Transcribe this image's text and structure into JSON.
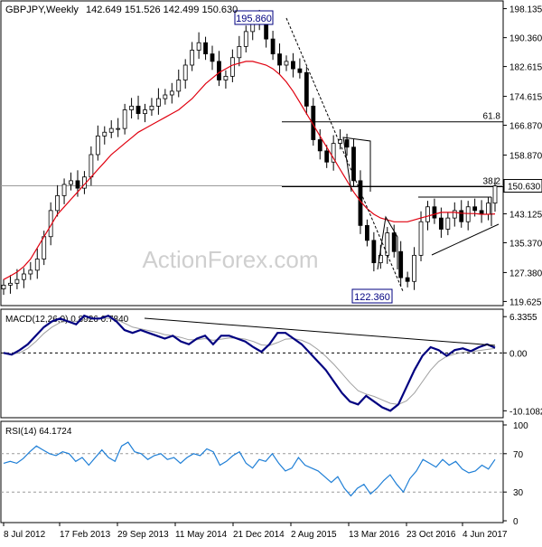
{
  "chart_data": [
    {
      "type": "candlestick",
      "title": "GBPJPY,Weekly",
      "ohlc_text": "142.649 151.526 142.499 150.630",
      "ohlc": {
        "open": 142.649,
        "high": 151.526,
        "low": 142.499,
        "close": 150.63
      },
      "watermark": "ActionForex.com",
      "y_ticks": [
        "198.135",
        "190.360",
        "182.615",
        "174.615",
        "166.870",
        "158.870",
        "150.630",
        "143.125",
        "135.370",
        "127.380",
        "119.625"
      ],
      "y_tick_values": [
        198.135,
        190.36,
        182.615,
        174.615,
        166.87,
        158.87,
        150.63,
        143.125,
        135.37,
        127.38,
        119.625
      ],
      "current_price": "150.630",
      "ylim": [
        119.0,
        199.0
      ],
      "labels": {
        "high": "195.860",
        "low": "122.360",
        "fib_618": "61.8",
        "fib_382": "38.2"
      },
      "fib_618_value": 167.8,
      "fib_382_value": 150.4,
      "x_tick_labels": [
        "8 Jul 2012",
        "17 Feb 2013",
        "29 Sep 2013",
        "11 May 2014",
        "21 Dec 2014",
        "2 Aug 2015",
        "13 Mar 2016",
        "23 Oct 2016",
        "4 Jun 2017"
      ],
      "series": [
        {
          "name": "Close (approx.)",
          "values": [
            124.0,
            124.5,
            125.5,
            127.0,
            128.0,
            131.0,
            137.0,
            144.0,
            148.0,
            151.0,
            152.0,
            150.0,
            153.0,
            159.0,
            164.0,
            165.0,
            166.0,
            166.0,
            171.0,
            172.0,
            170.0,
            171.0,
            172.0,
            174.0,
            175.0,
            176.0,
            179.0,
            183.0,
            187.0,
            189.0,
            186.0,
            184.0,
            179.0,
            180.0,
            185.0,
            188.0,
            192.0,
            195.0,
            194.0,
            190.0,
            186.0,
            183.0,
            184.0,
            182.0,
            181.0,
            172.0,
            163.0,
            160.0,
            157.0,
            162.0,
            163.0,
            161.0,
            152.0,
            140.0,
            136.0,
            130.0,
            132.0,
            138.0,
            133.0,
            126.0,
            125.0,
            132.0,
            141.0,
            145.0,
            142.0,
            139.0,
            142.0,
            144.0,
            141.0,
            145.0,
            144.0,
            143.0,
            146.0,
            150.6
          ]
        },
        {
          "name": "Moving average (approx.)",
          "values": [
            125.5,
            126.5,
            127.5,
            129.0,
            131.0,
            134.0,
            137.0,
            140.0,
            143.0,
            145.0,
            147.0,
            149.0,
            151.0,
            153.0,
            155.0,
            157.0,
            159.0,
            160.5,
            162.0,
            163.5,
            165.0,
            166.0,
            167.0,
            168.0,
            169.0,
            170.0,
            171.0,
            172.5,
            174.0,
            176.0,
            178.0,
            179.5,
            181.0,
            182.0,
            183.0,
            183.5,
            184.0,
            184.0,
            183.5,
            183.0,
            182.0,
            180.5,
            178.5,
            176.0,
            173.0,
            170.0,
            167.0,
            164.0,
            161.0,
            158.0,
            155.0,
            152.0,
            149.0,
            146.5,
            144.5,
            143.0,
            142.0,
            141.5,
            141.0,
            141.0,
            141.0,
            141.5,
            142.0,
            142.5,
            143.0,
            143.5,
            143.5,
            143.5,
            143.3,
            143.2,
            143.2,
            143.0,
            143.0,
            143.1
          ]
        }
      ]
    },
    {
      "type": "line",
      "title": "MACD(12,26,9) 0.8926 0.7840",
      "y_ticks": [
        "6.3355",
        "0.00",
        "-10.1082"
      ],
      "y_tick_values": [
        6.3355,
        0.0,
        -10.1082
      ],
      "ylim": [
        -11.0,
        7.0
      ],
      "series": [
        {
          "name": "MACD",
          "values": [
            0.0,
            -0.3,
            0.5,
            1.5,
            3.0,
            4.5,
            5.5,
            6.0,
            5.5,
            5.0,
            6.5,
            6.0,
            6.0,
            6.5,
            5.5,
            4.0,
            3.5,
            4.0,
            3.5,
            3.0,
            2.5,
            3.0,
            2.0,
            1.5,
            2.5,
            3.0,
            1.5,
            3.0,
            3.0,
            2.5,
            2.0,
            1.0,
            0.2,
            1.5,
            3.5,
            3.5,
            2.5,
            1.5,
            0.0,
            -1.5,
            -3.0,
            -5.0,
            -7.0,
            -8.5,
            -9.0,
            -7.5,
            -8.5,
            -9.5,
            -10.1,
            -9.0,
            -6.0,
            -3.0,
            -0.5,
            1.0,
            0.5,
            -0.5,
            0.5,
            0.8,
            0.3,
            1.0,
            1.5,
            0.9
          ]
        },
        {
          "name": "Signal",
          "values": [
            0.0,
            -0.2,
            0.0,
            0.8,
            2.0,
            3.4,
            4.5,
            5.3,
            5.6,
            5.5,
            5.8,
            6.0,
            6.0,
            6.0,
            5.8,
            5.2,
            4.5,
            4.2,
            3.9,
            3.6,
            3.2,
            3.0,
            2.7,
            2.3,
            2.3,
            2.5,
            2.2,
            2.4,
            2.6,
            2.6,
            2.4,
            2.0,
            1.4,
            1.3,
            1.8,
            2.4,
            2.5,
            2.2,
            1.6,
            0.6,
            -0.6,
            -2.0,
            -3.6,
            -5.2,
            -6.6,
            -7.2,
            -7.6,
            -8.2,
            -8.8,
            -9.0,
            -8.4,
            -7.0,
            -5.0,
            -3.0,
            -1.5,
            -0.6,
            -0.2,
            0.1,
            0.2,
            0.4,
            0.6,
            0.78
          ]
        }
      ]
    },
    {
      "type": "line",
      "title": "RSI(14) 64.1724",
      "y_ticks": [
        "100",
        "70",
        "30",
        "0"
      ],
      "y_tick_values": [
        100,
        70,
        30,
        0
      ],
      "ylim": [
        0,
        100
      ],
      "series": [
        {
          "name": "RSI",
          "values": [
            60,
            62,
            60,
            65,
            72,
            78,
            74,
            70,
            68,
            72,
            70,
            62,
            66,
            58,
            66,
            74,
            66,
            62,
            78,
            82,
            72,
            70,
            64,
            68,
            70,
            64,
            66,
            60,
            66,
            70,
            68,
            75,
            72,
            58,
            62,
            68,
            72,
            60,
            55,
            64,
            62,
            70,
            60,
            52,
            55,
            66,
            58,
            55,
            52,
            46,
            40,
            46,
            34,
            26,
            34,
            38,
            28,
            34,
            42,
            48,
            38,
            30,
            44,
            52,
            64,
            60,
            56,
            64,
            58,
            62,
            54,
            50,
            52,
            58,
            54,
            64
          ]
        }
      ]
    }
  ]
}
